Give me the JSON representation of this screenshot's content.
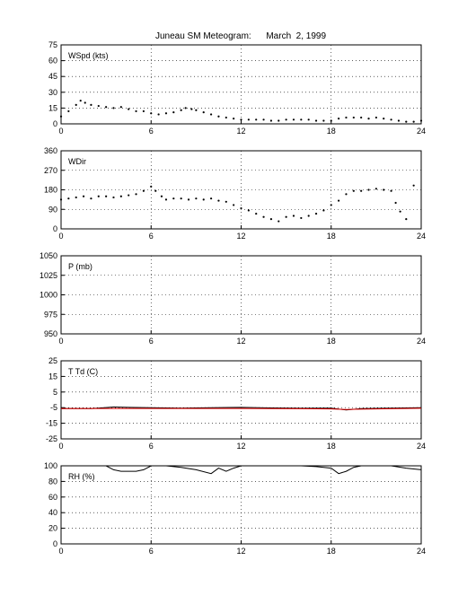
{
  "title": "Juneau SM Meteogram:      March  2, 1999",
  "chart_data": [
    {
      "type": "scatter",
      "panel_label": "WSpd (kts)",
      "x_ticks": [
        0,
        6,
        12,
        18,
        24
      ],
      "xlim": [
        0,
        24
      ],
      "ylim": [
        0,
        75
      ],
      "y_ticks": [
        0,
        15,
        30,
        45,
        60,
        75
      ],
      "grid": true,
      "series": [
        {
          "color": "#000000",
          "points": [
            [
              0.0,
              7
            ],
            [
              0.5,
              12
            ],
            [
              1.0,
              18
            ],
            [
              1.3,
              22
            ],
            [
              1.6,
              20
            ],
            [
              2.0,
              18
            ],
            [
              2.5,
              17
            ],
            [
              3.0,
              16
            ],
            [
              3.5,
              15
            ],
            [
              4.0,
              16
            ],
            [
              4.5,
              14
            ],
            [
              5.0,
              12
            ],
            [
              5.5,
              12
            ],
            [
              6.0,
              10
            ],
            [
              6.5,
              9
            ],
            [
              7.0,
              10
            ],
            [
              7.5,
              11
            ],
            [
              8.0,
              13
            ],
            [
              8.3,
              15
            ],
            [
              8.7,
              14
            ],
            [
              9.0,
              13
            ],
            [
              9.5,
              11
            ],
            [
              10.0,
              9
            ],
            [
              10.5,
              7
            ],
            [
              11.0,
              6
            ],
            [
              11.5,
              5
            ],
            [
              12.0,
              4
            ],
            [
              12.5,
              4
            ],
            [
              13.0,
              4
            ],
            [
              13.5,
              4
            ],
            [
              14.0,
              3
            ],
            [
              14.5,
              3
            ],
            [
              15.0,
              4
            ],
            [
              15.5,
              4
            ],
            [
              16.0,
              4
            ],
            [
              16.5,
              4
            ],
            [
              17.0,
              3
            ],
            [
              17.5,
              3
            ],
            [
              18.0,
              3
            ],
            [
              18.5,
              5
            ],
            [
              19.0,
              6
            ],
            [
              19.5,
              6
            ],
            [
              20.0,
              6
            ],
            [
              20.5,
              5
            ],
            [
              21.0,
              6
            ],
            [
              21.5,
              5
            ],
            [
              22.0,
              4
            ],
            [
              22.5,
              3
            ],
            [
              23.0,
              2
            ],
            [
              23.5,
              2
            ],
            [
              24.0,
              3
            ]
          ]
        }
      ]
    },
    {
      "type": "scatter",
      "panel_label": "WDir",
      "x_ticks": [
        0,
        6,
        12,
        18,
        24
      ],
      "xlim": [
        0,
        24
      ],
      "ylim": [
        0,
        360
      ],
      "y_ticks": [
        0,
        90,
        180,
        270,
        360
      ],
      "grid": true,
      "series": [
        {
          "color": "#000000",
          "points": [
            [
              0.0,
              135
            ],
            [
              0.5,
              140
            ],
            [
              1.0,
              145
            ],
            [
              1.5,
              150
            ],
            [
              2.0,
              140
            ],
            [
              2.5,
              150
            ],
            [
              3.0,
              150
            ],
            [
              3.5,
              145
            ],
            [
              4.0,
              150
            ],
            [
              4.5,
              155
            ],
            [
              5.0,
              160
            ],
            [
              5.5,
              175
            ],
            [
              6.0,
              195
            ],
            [
              6.3,
              175
            ],
            [
              6.7,
              150
            ],
            [
              7.0,
              135
            ],
            [
              7.5,
              140
            ],
            [
              8.0,
              140
            ],
            [
              8.5,
              135
            ],
            [
              9.0,
              140
            ],
            [
              9.5,
              135
            ],
            [
              10.0,
              140
            ],
            [
              10.5,
              130
            ],
            [
              11.0,
              125
            ],
            [
              11.5,
              110
            ],
            [
              12.0,
              95
            ],
            [
              12.5,
              85
            ],
            [
              13.0,
              70
            ],
            [
              13.5,
              55
            ],
            [
              14.0,
              45
            ],
            [
              14.5,
              35
            ],
            [
              15.0,
              55
            ],
            [
              15.5,
              60
            ],
            [
              16.0,
              50
            ],
            [
              16.5,
              60
            ],
            [
              17.0,
              70
            ],
            [
              17.5,
              85
            ],
            [
              18.0,
              110
            ],
            [
              18.5,
              130
            ],
            [
              19.0,
              160
            ],
            [
              19.5,
              175
            ],
            [
              20.0,
              175
            ],
            [
              20.5,
              180
            ],
            [
              21.0,
              185
            ],
            [
              21.5,
              180
            ],
            [
              22.0,
              175
            ],
            [
              22.3,
              120
            ],
            [
              22.6,
              80
            ],
            [
              23.0,
              45
            ],
            [
              23.5,
              200
            ]
          ]
        }
      ]
    },
    {
      "type": "line",
      "panel_label": "P (mb)",
      "x_ticks": [
        0,
        6,
        12,
        18,
        24
      ],
      "xlim": [
        0,
        24
      ],
      "ylim": [
        950,
        1050
      ],
      "y_ticks": [
        950,
        975,
        1000,
        1025,
        1050
      ],
      "grid": true,
      "series": []
    },
    {
      "type": "line",
      "panel_label": "T Td (C)",
      "x_ticks": [
        0,
        6,
        12,
        18,
        24
      ],
      "xlim": [
        0,
        24
      ],
      "ylim": [
        -25,
        25
      ],
      "y_ticks": [
        -25,
        -15,
        -5,
        5,
        15,
        25
      ],
      "grid": true,
      "series": [
        {
          "color": "#000000",
          "points": [
            [
              0,
              -5.5
            ],
            [
              2,
              -5.6
            ],
            [
              3.5,
              -4.6
            ],
            [
              4.5,
              -4.8
            ],
            [
              6,
              -5.0
            ],
            [
              8,
              -5.3
            ],
            [
              10,
              -5.0
            ],
            [
              12,
              -4.8
            ],
            [
              14,
              -5.2
            ],
            [
              16,
              -5.4
            ],
            [
              18,
              -5.3
            ],
            [
              19,
              -6.5
            ],
            [
              20,
              -5.6
            ],
            [
              22,
              -5.3
            ],
            [
              24,
              -5.0
            ]
          ]
        },
        {
          "color": "#e00000",
          "points": [
            [
              0,
              -5.6
            ],
            [
              4,
              -5.5
            ],
            [
              8,
              -5.5
            ],
            [
              12,
              -5.5
            ],
            [
              16,
              -5.7
            ],
            [
              18,
              -5.8
            ],
            [
              19,
              -6.2
            ],
            [
              20,
              -6.0
            ],
            [
              24,
              -5.4
            ]
          ]
        }
      ]
    },
    {
      "type": "line",
      "panel_label": "RH (%)",
      "x_ticks": [
        0,
        6,
        12,
        18,
        24
      ],
      "xlim": [
        0,
        24
      ],
      "ylim": [
        0,
        100
      ],
      "y_ticks": [
        0,
        20,
        40,
        60,
        80,
        100
      ],
      "grid": true,
      "series": [
        {
          "color": "#000000",
          "points": [
            [
              0,
              100
            ],
            [
              3,
              100
            ],
            [
              3.5,
              95
            ],
            [
              4,
              93
            ],
            [
              5,
              93
            ],
            [
              5.5,
              95
            ],
            [
              6,
              100
            ],
            [
              7,
              100
            ],
            [
              8,
              98
            ],
            [
              9,
              95
            ],
            [
              10,
              90
            ],
            [
              10.5,
              97
            ],
            [
              11,
              93
            ],
            [
              11.5,
              97
            ],
            [
              12,
              100
            ],
            [
              14,
              100
            ],
            [
              16,
              100
            ],
            [
              17,
              99
            ],
            [
              18,
              97
            ],
            [
              18.5,
              90
            ],
            [
              19,
              93
            ],
            [
              19.5,
              98
            ],
            [
              20,
              100
            ],
            [
              22,
              100
            ],
            [
              23,
              97
            ],
            [
              24,
              95
            ]
          ]
        }
      ]
    }
  ]
}
